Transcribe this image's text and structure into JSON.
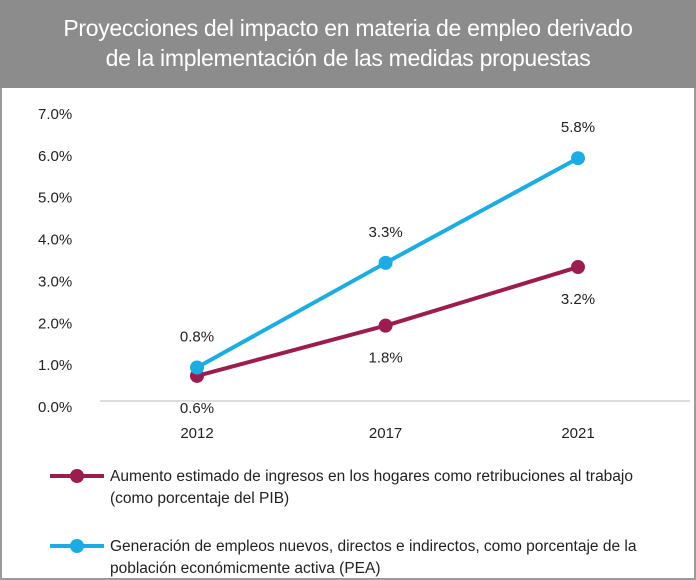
{
  "chart_data": {
    "type": "line",
    "title": [
      "Proyecciones del impacto en materia de empleo derivado",
      "de la implementación de las medidas propuestas"
    ],
    "categories": [
      "2012",
      "2017",
      "2021"
    ],
    "series": [
      {
        "name": "Aumento estimado de ingresos en los hogares como retribuciones al trabajo (como porcentaje del PIB)",
        "color": "#9c1c4f",
        "values": [
          0.6,
          1.8,
          3.2
        ],
        "value_labels": [
          "0.6%",
          "1.8%",
          "3.2%"
        ]
      },
      {
        "name": "Generación de empleos nuevos, directos e indirectos, como porcentaje de la población económicmente activa (PEA)",
        "color": "#1aace3",
        "values": [
          0.8,
          3.3,
          5.8
        ],
        "value_labels": [
          "0.8%",
          "3.3%",
          "5.8%"
        ]
      }
    ],
    "ylim": [
      0,
      7
    ],
    "yticks": [
      {
        "value": 0,
        "label": "0.0%"
      },
      {
        "value": 1,
        "label": "1.0%"
      },
      {
        "value": 2,
        "label": "2.0%"
      },
      {
        "value": 3,
        "label": "3.0%"
      },
      {
        "value": 4,
        "label": "4.0%"
      },
      {
        "value": 5,
        "label": "5.0%"
      },
      {
        "value": 6,
        "label": "6.0%"
      },
      {
        "value": 7,
        "label": "7.0%"
      }
    ],
    "grid": false
  }
}
